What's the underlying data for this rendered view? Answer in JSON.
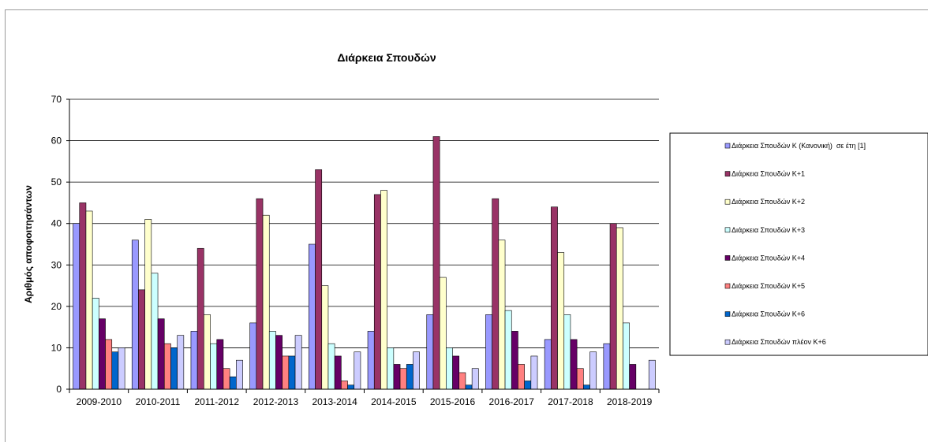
{
  "chart_data": {
    "type": "bar",
    "title": "Διάρκεια Σπουδών",
    "xlabel": "",
    "ylabel": "Αριθμός αποφοιτησάντων",
    "ylim": [
      0,
      70
    ],
    "yticks": [
      0,
      10,
      20,
      30,
      40,
      50,
      60,
      70
    ],
    "grid": true,
    "legend_position": "right",
    "categories": [
      "2009-2010",
      "2010-2011",
      "2011-2012",
      "2012-2013",
      "2013-2014",
      "2014-2015",
      "2015-2016",
      "2016-2017",
      "2017-2018",
      "2018-2019"
    ],
    "series": [
      {
        "name": "Διάρκεια Σπουδών Κ (Κανονική)  σε έτη [1]",
        "color": "#9999ff",
        "values": [
          40,
          36,
          14,
          16,
          35,
          14,
          18,
          18,
          12,
          11
        ]
      },
      {
        "name": "Διάρκεια Σπουδών Κ+1",
        "color": "#993366",
        "values": [
          45,
          24,
          34,
          46,
          53,
          47,
          61,
          46,
          44,
          40
        ]
      },
      {
        "name": "Διάρκεια Σπουδών Κ+2",
        "color": "#ffffcc",
        "values": [
          43,
          41,
          18,
          42,
          25,
          48,
          27,
          36,
          33,
          39
        ]
      },
      {
        "name": "Διάρκεια Σπουδών Κ+3",
        "color": "#ccffff",
        "values": [
          22,
          28,
          11,
          14,
          11,
          10,
          10,
          19,
          18,
          16
        ]
      },
      {
        "name": "Διάρκεια Σπουδών Κ+4",
        "color": "#660066",
        "values": [
          17,
          17,
          12,
          13,
          8,
          6,
          8,
          14,
          12,
          6
        ]
      },
      {
        "name": "Διάρκεια Σπουδών Κ+5",
        "color": "#ff8080",
        "values": [
          12,
          11,
          5,
          8,
          2,
          5,
          4,
          6,
          5,
          0
        ]
      },
      {
        "name": "Διάρκεια Σπουδών Κ+6",
        "color": "#0066cc",
        "values": [
          9,
          10,
          3,
          8,
          1,
          6,
          1,
          2,
          1,
          0
        ]
      },
      {
        "name": "Διάρκεια Σπουδών πλέον Κ+6",
        "color": "#ccccff",
        "values": [
          10,
          13,
          7,
          13,
          9,
          9,
          5,
          8,
          9,
          7
        ]
      }
    ]
  }
}
